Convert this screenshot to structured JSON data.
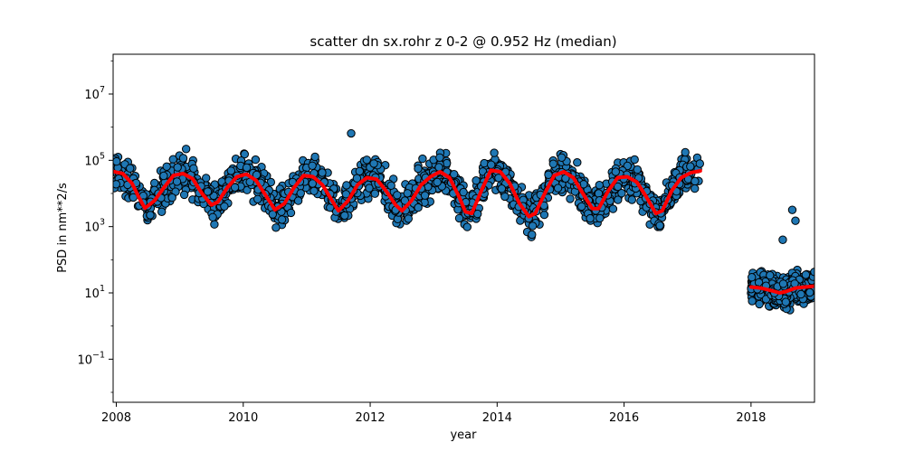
{
  "chart_data": {
    "type": "scatter",
    "title": "scatter dn sx.rohr z 0-2 @ 0.952 Hz (median)",
    "xlabel": "year",
    "ylabel": "PSD in nm**2/s",
    "xlim": [
      2007.95,
      2019.0
    ],
    "ylim_log10": [
      -2.3,
      8.2
    ],
    "yscale": "log",
    "grid": false,
    "x_ticks": [
      {
        "value": 2008,
        "label": "2008"
      },
      {
        "value": 2010,
        "label": "2010"
      },
      {
        "value": 2012,
        "label": "2012"
      },
      {
        "value": 2014,
        "label": "2014"
      },
      {
        "value": 2016,
        "label": "2016"
      },
      {
        "value": 2018,
        "label": "2018"
      }
    ],
    "y_ticks": [
      {
        "exp": -1,
        "base": "10",
        "sup": "−1"
      },
      {
        "exp": 1,
        "base": "10",
        "sup": "1"
      },
      {
        "exp": 3,
        "base": "10",
        "sup": "3"
      },
      {
        "exp": 5,
        "base": "10",
        "sup": "5"
      },
      {
        "exp": 7,
        "base": "10",
        "sup": "7"
      }
    ],
    "colors": {
      "points_fill": "#1f77b4",
      "points_edge": "#000000",
      "median_line": "#ff0000"
    },
    "series": [
      {
        "kind": "median-line",
        "points": [
          [
            2007.95,
            46000
          ],
          [
            2008.1,
            40000
          ],
          [
            2008.25,
            20000
          ],
          [
            2008.35,
            8000
          ],
          [
            2008.45,
            3600
          ],
          [
            2008.6,
            6000
          ],
          [
            2008.75,
            15000
          ],
          [
            2008.9,
            35000
          ],
          [
            2009.05,
            40000
          ],
          [
            2009.2,
            28000
          ],
          [
            2009.35,
            10000
          ],
          [
            2009.5,
            4500
          ],
          [
            2009.6,
            5500
          ],
          [
            2009.75,
            15000
          ],
          [
            2009.9,
            32000
          ],
          [
            2010.05,
            38000
          ],
          [
            2010.2,
            25000
          ],
          [
            2010.35,
            9000
          ],
          [
            2010.5,
            3200
          ],
          [
            2010.65,
            5000
          ],
          [
            2010.8,
            15000
          ],
          [
            2010.95,
            35000
          ],
          [
            2011.1,
            32000
          ],
          [
            2011.25,
            18000
          ],
          [
            2011.4,
            6000
          ],
          [
            2011.5,
            3000
          ],
          [
            2011.65,
            6000
          ],
          [
            2011.8,
            18000
          ],
          [
            2011.95,
            30000
          ],
          [
            2012.1,
            27000
          ],
          [
            2012.25,
            12000
          ],
          [
            2012.4,
            4500
          ],
          [
            2012.5,
            3000
          ],
          [
            2012.65,
            6000
          ],
          [
            2012.8,
            18000
          ],
          [
            2012.95,
            32000
          ],
          [
            2013.1,
            45000
          ],
          [
            2013.25,
            30000
          ],
          [
            2013.4,
            8000
          ],
          [
            2013.5,
            2800
          ],
          [
            2013.6,
            2500
          ],
          [
            2013.75,
            12000
          ],
          [
            2013.9,
            50000
          ],
          [
            2014.05,
            45000
          ],
          [
            2014.2,
            20000
          ],
          [
            2014.35,
            5000
          ],
          [
            2014.5,
            2000
          ],
          [
            2014.6,
            2500
          ],
          [
            2014.75,
            10000
          ],
          [
            2014.9,
            35000
          ],
          [
            2015.05,
            45000
          ],
          [
            2015.2,
            30000
          ],
          [
            2015.35,
            10000
          ],
          [
            2015.5,
            3500
          ],
          [
            2015.6,
            3500
          ],
          [
            2015.75,
            12000
          ],
          [
            2015.9,
            30000
          ],
          [
            2016.05,
            32000
          ],
          [
            2016.2,
            22000
          ],
          [
            2016.35,
            8000
          ],
          [
            2016.5,
            2500
          ],
          [
            2016.6,
            3000
          ],
          [
            2016.75,
            12000
          ],
          [
            2016.9,
            30000
          ],
          [
            2017.05,
            42000
          ],
          [
            2017.2,
            48000
          ]
        ]
      },
      {
        "kind": "median-line",
        "points": [
          [
            2018.0,
            15
          ],
          [
            2018.15,
            14
          ],
          [
            2018.3,
            12
          ],
          [
            2018.45,
            10
          ],
          [
            2018.55,
            11
          ],
          [
            2018.7,
            14
          ],
          [
            2018.85,
            15
          ],
          [
            2019.0,
            16
          ]
        ]
      }
    ]
  }
}
